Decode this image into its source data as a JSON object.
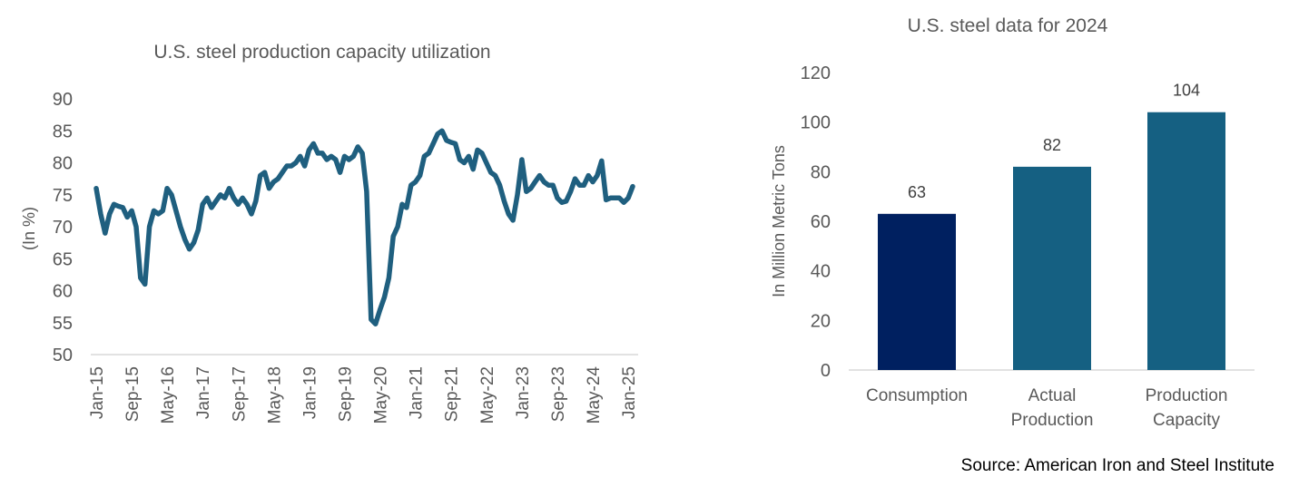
{
  "chart_data": [
    {
      "type": "line",
      "title": "U.S. steel production capacity utilization",
      "ylabel": "(In %)",
      "ylim": [
        50,
        90
      ],
      "yticks": [
        50,
        55,
        60,
        65,
        70,
        75,
        80,
        85,
        90
      ],
      "xticks": [
        "Jan-15",
        "Sep-15",
        "May-16",
        "Jan-17",
        "Sep-17",
        "May-18",
        "Jan-19",
        "Sep-19",
        "May-20",
        "Jan-21",
        "Sep-21",
        "May-22",
        "Jan-23",
        "Sep-23",
        "May-24",
        "Jan-25"
      ],
      "grid": false,
      "color": "#1F5F7F",
      "series": [
        {
          "name": "",
          "values": [
            76,
            72,
            69,
            72,
            73.5,
            73.2,
            73,
            71.5,
            72.5,
            70,
            62,
            61,
            70,
            72.5,
            72,
            72.5,
            76,
            75,
            72.5,
            70,
            68,
            66.5,
            67.5,
            69.5,
            73.5,
            74.5,
            73,
            74,
            75,
            74.5,
            76,
            74.5,
            73.5,
            74.5,
            73.5,
            72,
            74,
            78,
            78.5,
            76,
            77,
            77.5,
            78.5,
            79.5,
            79.5,
            80,
            81,
            79.5,
            82,
            83,
            81.5,
            81.5,
            80.5,
            81,
            80.5,
            78.5,
            81,
            80.5,
            81,
            82.5,
            81.5,
            75.5,
            55.5,
            54.8,
            57,
            59,
            62,
            68.5,
            70,
            73.5,
            73,
            76.5,
            77,
            78,
            81,
            81.5,
            83,
            84.5,
            85,
            83.5,
            83.2,
            83,
            80.5,
            80,
            81,
            79,
            82,
            81.5,
            80,
            78.5,
            78,
            76.5,
            74,
            72,
            71,
            75,
            80.5,
            75.5,
            76,
            77,
            78,
            77,
            76.5,
            76.5,
            74.5,
            73.8,
            74,
            75.5,
            77.5,
            76.5,
            76.5,
            78,
            77,
            78,
            80.3,
            74.2,
            74.5,
            74.5,
            74.5,
            73.8,
            74.5,
            76.3
          ]
        }
      ]
    },
    {
      "type": "bar",
      "title": "U.S. steel data for 2024",
      "ylabel": "In Million Metric Tons",
      "ylim": [
        0,
        120
      ],
      "yticks": [
        0,
        20,
        40,
        60,
        80,
        100,
        120
      ],
      "grid": false,
      "categories": [
        [
          "Consumption"
        ],
        [
          "Actual",
          "Production"
        ],
        [
          "Production",
          "Capacity"
        ]
      ],
      "values": [
        63,
        82,
        104
      ],
      "colors": [
        "#002060",
        "#156082",
        "#156082"
      ]
    }
  ],
  "source": "Source: American Iron and Steel Institute"
}
